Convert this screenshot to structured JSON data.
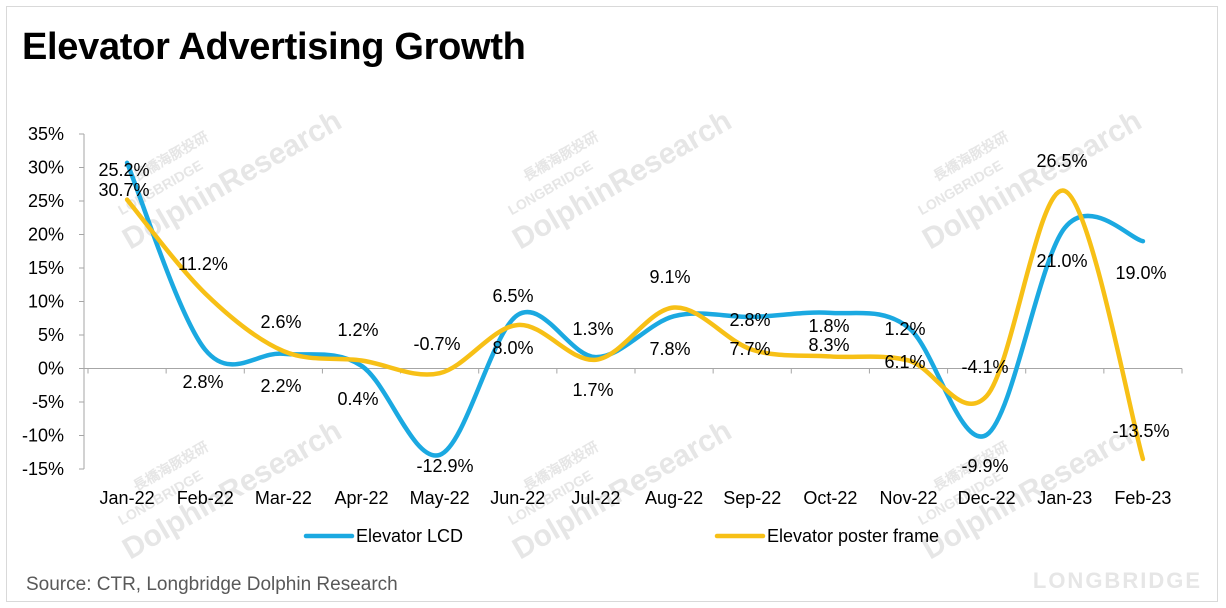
{
  "title": "Elevator Advertising Growth",
  "source": "Source: CTR, Longbridge Dolphin Research",
  "watermark": {
    "brand_text": "DolphinResearch",
    "sub_text": "LONGBRIDGE",
    "cn_text": "長橋海豚投研",
    "footer_logo": "LONGBRIDGE"
  },
  "chart_data": {
    "type": "line",
    "categories": [
      "Jan-22",
      "Feb-22",
      "Mar-22",
      "Apr-22",
      "May-22",
      "Jun-22",
      "Jul-22",
      "Aug-22",
      "Sep-22",
      "Oct-22",
      "Nov-22",
      "Dec-22",
      "Jan-23",
      "Feb-23"
    ],
    "series": [
      {
        "name": "Elevator LCD",
        "color": "#1ba9e1",
        "values": [
          30.7,
          2.8,
          2.2,
          0.4,
          -12.9,
          8.0,
          1.7,
          7.8,
          7.7,
          8.3,
          6.1,
          -9.9,
          21.0,
          19.0
        ],
        "data_labels": [
          "30.7%",
          "2.8%",
          "2.2%",
          "0.4%",
          "-12.9%",
          "8.0%",
          "1.7%",
          "7.8%",
          "7.7%",
          "8.3%",
          "6.1%",
          "-9.9%",
          "21.0%",
          "19.0%"
        ]
      },
      {
        "name": "Elevator poster frame",
        "color": "#f7c016",
        "values": [
          25.2,
          11.2,
          2.6,
          1.2,
          -0.7,
          6.5,
          1.3,
          9.1,
          2.8,
          1.8,
          1.2,
          -4.1,
          26.5,
          -13.5
        ],
        "data_labels": [
          "25.2%",
          "11.2%",
          "2.6%",
          "1.2%",
          "-0.7%",
          "6.5%",
          "1.3%",
          "9.1%",
          "2.8%",
          "1.8%",
          "1.2%",
          "-4.1%",
          "26.5%",
          "-13.5%"
        ]
      }
    ],
    "ylim": [
      -15,
      35
    ],
    "yticks": [
      35,
      30,
      25,
      20,
      15,
      10,
      5,
      0,
      -5,
      -10,
      -15
    ],
    "ytick_labels": [
      "35%",
      "30%",
      "25%",
      "20%",
      "15%",
      "10%",
      "5%",
      "0%",
      "-5%",
      "-10%",
      "-15%"
    ],
    "xlabel": "",
    "ylabel": "",
    "grid": false,
    "legend_position": "bottom"
  }
}
